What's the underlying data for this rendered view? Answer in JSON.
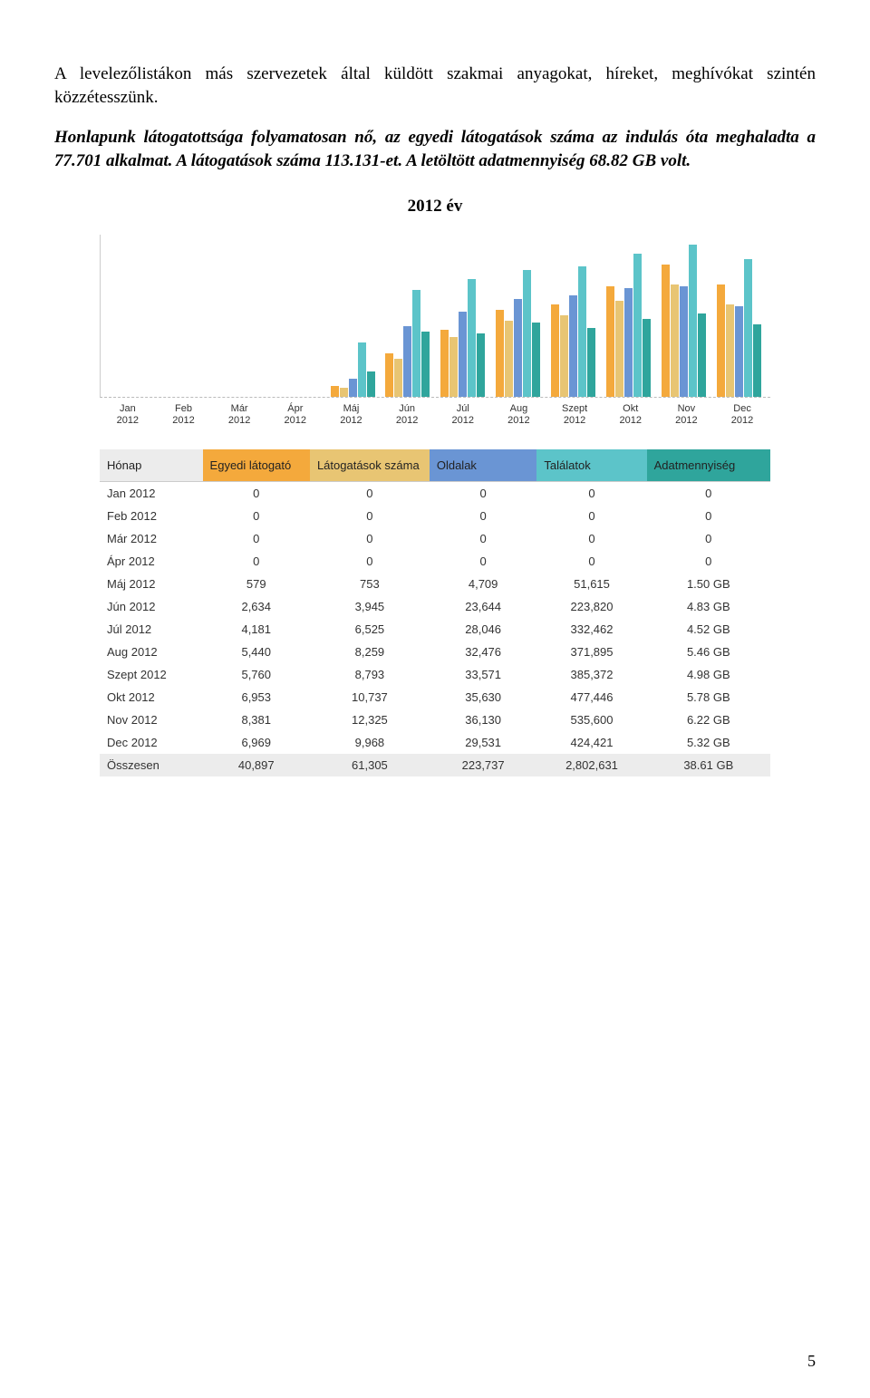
{
  "paragraphs": {
    "p1": "A levelezőlistákon más szervezetek által küldött szakmai anyagokat, híreket, meghívókat szintén közzétesszünk.",
    "p2": "Honlapunk látogatottsága folyamatosan nő, az egyedi látogatások száma az indulás óta meghaladta a 77.701 alkalmat. A látogatások száma 113.131-et. A letöltött adatmennyiség 68.82 GB volt."
  },
  "year_title": "2012 év",
  "page_number": "5",
  "chart": {
    "months": [
      "Jan 2012",
      "Feb 2012",
      "Már 2012",
      "Ápr 2012",
      "Máj 2012",
      "Jún 2012",
      "Júl 2012",
      "Aug 2012",
      "Szept 2012",
      "Okt 2012",
      "Nov 2012",
      "Dec 2012"
    ],
    "series_colors": [
      "#f4a93c",
      "#e8c573",
      "#6a95d4",
      "#5cc4c9",
      "#2fa59c"
    ],
    "heights": [
      [
        0,
        0,
        0,
        0,
        0
      ],
      [
        0,
        0,
        0,
        0,
        0
      ],
      [
        0,
        0,
        0,
        0,
        0
      ],
      [
        0,
        0,
        0,
        0,
        0
      ],
      [
        12,
        10,
        20,
        60,
        28
      ],
      [
        48,
        42,
        78,
        118,
        72
      ],
      [
        74,
        66,
        94,
        130,
        70
      ],
      [
        96,
        84,
        108,
        140,
        82
      ],
      [
        102,
        90,
        112,
        144,
        76
      ],
      [
        122,
        106,
        120,
        158,
        86
      ],
      [
        146,
        124,
        122,
        168,
        92
      ],
      [
        124,
        102,
        100,
        152,
        80
      ]
    ],
    "background": "#ffffff"
  },
  "table": {
    "headers": [
      {
        "label": "Hónap",
        "bg": "#ececec"
      },
      {
        "label": "Egyedi látogató",
        "bg": "#f4a93c"
      },
      {
        "label": "Látogatások száma",
        "bg": "#e8c573"
      },
      {
        "label": "Oldalak",
        "bg": "#6a95d4"
      },
      {
        "label": "Találatok",
        "bg": "#5cc4c9"
      },
      {
        "label": "Adatmennyiség",
        "bg": "#2fa59c"
      }
    ],
    "rows": [
      [
        "Jan 2012",
        "0",
        "0",
        "0",
        "0",
        "0"
      ],
      [
        "Feb 2012",
        "0",
        "0",
        "0",
        "0",
        "0"
      ],
      [
        "Már 2012",
        "0",
        "0",
        "0",
        "0",
        "0"
      ],
      [
        "Ápr 2012",
        "0",
        "0",
        "0",
        "0",
        "0"
      ],
      [
        "Máj 2012",
        "579",
        "753",
        "4,709",
        "51,615",
        "1.50 GB"
      ],
      [
        "Jún 2012",
        "2,634",
        "3,945",
        "23,644",
        "223,820",
        "4.83 GB"
      ],
      [
        "Júl 2012",
        "4,181",
        "6,525",
        "28,046",
        "332,462",
        "4.52 GB"
      ],
      [
        "Aug 2012",
        "5,440",
        "8,259",
        "32,476",
        "371,895",
        "5.46 GB"
      ],
      [
        "Szept 2012",
        "5,760",
        "8,793",
        "33,571",
        "385,372",
        "4.98 GB"
      ],
      [
        "Okt 2012",
        "6,953",
        "10,737",
        "35,630",
        "477,446",
        "5.78 GB"
      ],
      [
        "Nov 2012",
        "8,381",
        "12,325",
        "36,130",
        "535,600",
        "6.22 GB"
      ],
      [
        "Dec 2012",
        "6,969",
        "9,968",
        "29,531",
        "424,421",
        "5.32 GB"
      ]
    ],
    "total": [
      "Összesen",
      "40,897",
      "61,305",
      "223,737",
      "2,802,631",
      "38.61 GB"
    ]
  }
}
